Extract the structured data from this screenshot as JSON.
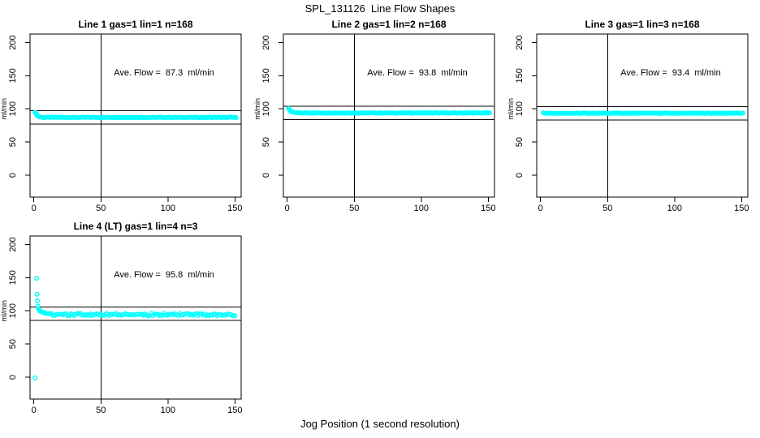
{
  "figure": {
    "title": "SPL_131126  Line Flow Shapes",
    "outer_xlabel": "Jog Position (1 second resolution)",
    "colors": {
      "points": "#00FFFF",
      "axis": "#000000",
      "background": "#FFFFFF"
    }
  },
  "chart_data": [
    {
      "type": "scatter",
      "title": "Line 1 gas=1 lin=1 n=168",
      "ave_flow_ml_min": 87.3,
      "annotation": "Ave. Flow =  87.3  ml/min",
      "ylabel": "ml/min",
      "xlim": [
        0,
        150
      ],
      "ylim": [
        0,
        200
      ],
      "xticks": [
        0,
        50,
        100,
        150
      ],
      "yticks": [
        0,
        50,
        100,
        150,
        200
      ],
      "vline_x": 50,
      "hlines": [
        97.3,
        77.3
      ],
      "annotation_xy": [
        97,
        154
      ],
      "head_points": [
        [
          1,
          94.5
        ],
        [
          1.5,
          93
        ],
        [
          2,
          91.5
        ],
        [
          2.5,
          90.3
        ],
        [
          3,
          89.4
        ],
        [
          3.5,
          88.7
        ],
        [
          4,
          88.2
        ],
        [
          5,
          87.7
        ],
        [
          6,
          87.4
        ]
      ],
      "band": {
        "x_from": 7,
        "x_to": 151,
        "x_step": 1,
        "y": 87.1,
        "jitter": 0.4
      }
    },
    {
      "type": "scatter",
      "title": "Line 2 gas=1 lin=2 n=168",
      "ave_flow_ml_min": 93.8,
      "annotation": "Ave. Flow =  93.8  ml/min",
      "ylabel": "ml/min",
      "xlim": [
        0,
        150
      ],
      "ylim": [
        0,
        200
      ],
      "xticks": [
        0,
        50,
        100,
        150
      ],
      "yticks": [
        0,
        50,
        100,
        150,
        200
      ],
      "vline_x": 50,
      "hlines": [
        103.8,
        83.8
      ],
      "annotation_xy": [
        97,
        154
      ],
      "head_points": [
        [
          1,
          100.5
        ],
        [
          1.5,
          99.2
        ],
        [
          2,
          97.8
        ],
        [
          2.5,
          96.8
        ],
        [
          3,
          96.1
        ],
        [
          3.5,
          95.6
        ],
        [
          4,
          95.2
        ],
        [
          4.5,
          94.9
        ],
        [
          5,
          94.7
        ],
        [
          6,
          94.4
        ],
        [
          7,
          94.2
        ],
        [
          8,
          94.0
        ]
      ],
      "band": {
        "x_from": 9,
        "x_to": 151,
        "x_step": 1,
        "y": 93.8,
        "jitter": 0.45
      }
    },
    {
      "type": "scatter",
      "title": "Line 3 gas=1 lin=3 n=168",
      "ave_flow_ml_min": 93.4,
      "annotation": "Ave. Flow =  93.4  ml/min",
      "ylabel": "ml/min",
      "xlim": [
        0,
        150
      ],
      "ylim": [
        0,
        200
      ],
      "xticks": [
        0,
        50,
        100,
        150
      ],
      "yticks": [
        0,
        50,
        100,
        150,
        200
      ],
      "vline_x": 50,
      "hlines": [
        103.4,
        83.4
      ],
      "annotation_xy": [
        97,
        154
      ],
      "head_points": [
        [
          2,
          94.0
        ],
        [
          3,
          93.7
        ]
      ],
      "band": {
        "x_from": 4,
        "x_to": 151,
        "x_step": 1,
        "y": 93.4,
        "jitter": 0.4
      }
    },
    {
      "type": "scatter",
      "title": "Line 4 (LT) gas=1 lin=4 n=3",
      "ave_flow_ml_min": 95.8,
      "annotation": "Ave. Flow =  95.8  ml/min",
      "ylabel": "ml/min",
      "xlim": [
        0,
        150
      ],
      "ylim": [
        0,
        200
      ],
      "xticks": [
        0,
        50,
        100,
        150
      ],
      "yticks": [
        0,
        50,
        100,
        150,
        200
      ],
      "vline_x": 50,
      "hlines": [
        105.8,
        85.8
      ],
      "annotation_xy": [
        97,
        154
      ],
      "head_points": [
        [
          0.8,
          -1
        ],
        [
          2,
          149
        ],
        [
          2.3,
          125
        ],
        [
          2.6,
          115
        ],
        [
          3,
          107
        ],
        [
          3.5,
          103
        ],
        [
          4,
          101
        ],
        [
          4.5,
          100
        ],
        [
          5,
          99.3
        ],
        [
          5.5,
          98.8
        ],
        [
          6,
          98.3
        ],
        [
          7,
          97.5
        ],
        [
          8,
          96.9
        ],
        [
          9,
          96.4
        ],
        [
          10,
          96.0
        ],
        [
          11,
          95.6
        ]
      ],
      "band": {
        "x_from": 12,
        "x_to": 151,
        "x_step": 1.2,
        "y": 94.2,
        "jitter": 1.8
      }
    }
  ]
}
